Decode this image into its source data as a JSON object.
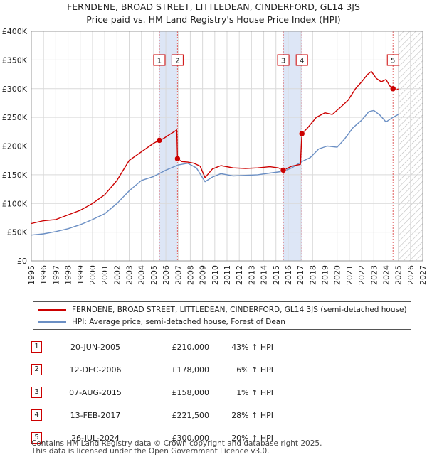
{
  "title_line1": "FERNDENE, BROAD STREET, LITTLEDEAN, CINDERFORD, GL14 3JS",
  "title_line2": "Price paid vs. HM Land Registry's House Price Index (HPI)",
  "colors": {
    "price": "#cc0000",
    "hpi": "#6b8fc4",
    "band": "#dde6f6",
    "grid": "#d9d9d9"
  },
  "chart_data": {
    "type": "line",
    "xlim": [
      1995,
      2027
    ],
    "ylim": [
      0,
      400000
    ],
    "x_ticks": [
      "1995",
      "1996",
      "1997",
      "1998",
      "1999",
      "2000",
      "2001",
      "2002",
      "2003",
      "2004",
      "2005",
      "2006",
      "2007",
      "2008",
      "2009",
      "2010",
      "2011",
      "2012",
      "2013",
      "2014",
      "2015",
      "2016",
      "2017",
      "2018",
      "2019",
      "2020",
      "2021",
      "2022",
      "2023",
      "2024",
      "2025",
      "2026",
      "2027"
    ],
    "y_ticks": [
      {
        "value": 0,
        "label": "£0"
      },
      {
        "value": 50000,
        "label": "£50K"
      },
      {
        "value": 100000,
        "label": "£100K"
      },
      {
        "value": 150000,
        "label": "£150K"
      },
      {
        "value": 200000,
        "label": "£200K"
      },
      {
        "value": 250000,
        "label": "£250K"
      },
      {
        "value": 300000,
        "label": "£300K"
      },
      {
        "value": 350000,
        "label": "£350K"
      },
      {
        "value": 400000,
        "label": "£400K"
      }
    ],
    "forecast_from": 2025.0,
    "sale_bands": [
      [
        2005.47,
        2006.95
      ],
      [
        2015.6,
        2017.12
      ]
    ],
    "sales": [
      {
        "id": "1",
        "x": 2005.47,
        "y": 210000
      },
      {
        "id": "2",
        "x": 2006.95,
        "y": 178000
      },
      {
        "id": "3",
        "x": 2015.6,
        "y": 158000
      },
      {
        "id": "4",
        "x": 2017.12,
        "y": 221500
      },
      {
        "id": "5",
        "x": 2024.57,
        "y": 300000
      }
    ],
    "series": [
      {
        "name": "FERNDENE, BROAD STREET, LITTLEDEAN, CINDERFORD, GL14 3JS (semi-detached house)",
        "x": [
          1995,
          1996,
          1997,
          1998,
          1999,
          2000,
          2001,
          2002,
          2003,
          2004,
          2005,
          2005.47,
          2005.8,
          2006.3,
          2006.9,
          2006.95,
          2007.3,
          2007.8,
          2008.3,
          2008.8,
          2009.2,
          2009.8,
          2010.5,
          2011.5,
          2012.5,
          2013.5,
          2014.5,
          2015.2,
          2015.6,
          2016.3,
          2017.0,
          2017.12,
          2017.6,
          2018.3,
          2019.0,
          2019.6,
          2020.3,
          2020.9,
          2021.5,
          2022.0,
          2022.5,
          2022.8,
          2023.2,
          2023.6,
          2024.0,
          2024.3,
          2024.57,
          2024.9,
          2025.0
        ],
        "values": [
          65000,
          70000,
          72000,
          80000,
          88000,
          100000,
          115000,
          140000,
          175000,
          190000,
          205000,
          210000,
          213000,
          220000,
          228000,
          178000,
          173000,
          172000,
          170000,
          165000,
          145000,
          160000,
          166000,
          162000,
          161000,
          162000,
          164000,
          162000,
          158000,
          165000,
          168000,
          221500,
          232000,
          250000,
          258000,
          255000,
          268000,
          280000,
          300000,
          312000,
          325000,
          330000,
          318000,
          312000,
          316000,
          305000,
          300000,
          298000,
          300000
        ]
      },
      {
        "name": "HPI: Average price, semi-detached house, Forest of Dean",
        "x": [
          1995,
          1996,
          1997,
          1998,
          1999,
          2000,
          2001,
          2002,
          2003,
          2004,
          2005,
          2006,
          2007,
          2007.8,
          2008.5,
          2009.2,
          2009.8,
          2010.5,
          2011.5,
          2012.5,
          2013.5,
          2014.5,
          2015.6,
          2016.3,
          2017.12,
          2017.8,
          2018.5,
          2019.2,
          2020.0,
          2020.6,
          2021.3,
          2022.0,
          2022.6,
          2023.0,
          2023.5,
          2024.0,
          2024.57,
          2025.0
        ],
        "values": [
          45000,
          47000,
          51000,
          56000,
          63000,
          72000,
          82000,
          100000,
          122000,
          140000,
          147000,
          158000,
          167000,
          170000,
          162000,
          138000,
          146000,
          152000,
          148000,
          149000,
          150000,
          153000,
          156000,
          162000,
          173000,
          180000,
          195000,
          200000,
          198000,
          212000,
          232000,
          245000,
          260000,
          262000,
          254000,
          242000,
          250000,
          255000
        ]
      }
    ]
  },
  "legend": {
    "price_label": "FERNDENE, BROAD STREET, LITTLEDEAN, CINDERFORD, GL14 3JS (semi-detached house)",
    "hpi_label": "HPI: Average price, semi-detached house, Forest of Dean"
  },
  "sales_table": [
    {
      "num": "1",
      "date": "20-JUN-2005",
      "price": "£210,000",
      "hpi": "43% ↑ HPI"
    },
    {
      "num": "2",
      "date": "12-DEC-2006",
      "price": "£178,000",
      "hpi": "6% ↑ HPI"
    },
    {
      "num": "3",
      "date": "07-AUG-2015",
      "price": "£158,000",
      "hpi": "1% ↑ HPI"
    },
    {
      "num": "4",
      "date": "13-FEB-2017",
      "price": "£221,500",
      "hpi": "28% ↑ HPI"
    },
    {
      "num": "5",
      "date": "26-JUL-2024",
      "price": "£300,000",
      "hpi": "20% ↑ HPI"
    }
  ],
  "footer_line1": "Contains HM Land Registry data © Crown copyright and database right 2025.",
  "footer_line2": "This data is licensed under the Open Government Licence v3.0."
}
